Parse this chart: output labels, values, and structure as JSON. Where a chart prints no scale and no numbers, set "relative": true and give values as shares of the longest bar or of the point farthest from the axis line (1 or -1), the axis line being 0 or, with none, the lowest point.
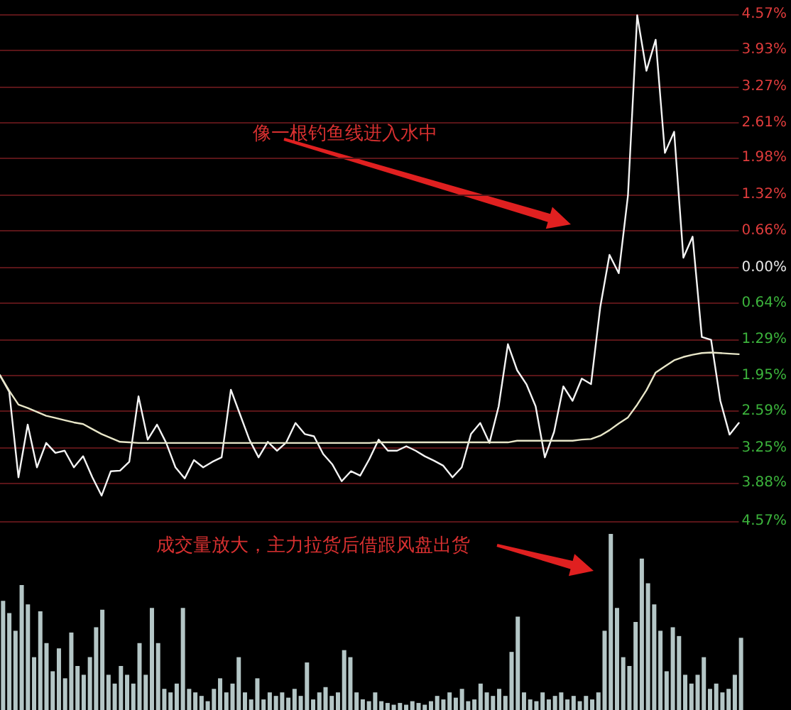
{
  "chart_data": [
    {
      "type": "line",
      "ylim": [
        -4.57,
        4.57
      ],
      "categories": [
        null,
        null,
        null,
        null,
        null,
        null,
        null,
        null,
        null,
        null,
        null,
        null,
        null,
        null,
        null,
        null,
        null,
        null,
        null,
        null,
        null,
        null,
        null,
        null,
        null,
        null,
        null,
        null,
        null,
        null,
        null,
        null,
        null,
        null,
        null,
        null,
        null,
        null,
        null,
        null,
        null,
        null,
        null,
        null,
        null,
        null,
        null,
        null,
        null,
        null,
        null,
        null,
        null,
        null,
        null,
        null,
        null,
        null,
        null,
        null,
        null,
        null,
        null,
        null,
        null,
        null,
        null,
        null,
        null,
        null,
        null,
        null,
        null,
        null,
        null,
        null,
        null,
        null,
        null,
        null,
        null
      ],
      "yticks": [
        {
          "value": 4.57,
          "label": "4.57%"
        },
        {
          "value": 3.93,
          "label": "3.93%"
        },
        {
          "value": 3.27,
          "label": "3.27%"
        },
        {
          "value": 2.61,
          "label": "2.61%"
        },
        {
          "value": 1.98,
          "label": "1.98%"
        },
        {
          "value": 1.32,
          "label": "1.32%"
        },
        {
          "value": 0.66,
          "label": "0.66%"
        },
        {
          "value": 0,
          "label": "0.00%"
        },
        {
          "value": -0.64,
          "label": "0.64%"
        },
        {
          "value": -1.29,
          "label": "1.29%"
        },
        {
          "value": -1.95,
          "label": "1.95%"
        },
        {
          "value": -2.59,
          "label": "2.59%"
        },
        {
          "value": -3.25,
          "label": "3.25%"
        },
        {
          "value": -3.88,
          "label": "3.88%"
        },
        {
          "value": -4.57,
          "label": "4.57%"
        }
      ],
      "tick_labels": "y",
      "grid": "y",
      "line_style": "solid",
      "series": [
        {
          "color": "#f4f4f4",
          "values": [
            -1.94,
            -2.24,
            -3.78,
            -2.83,
            -3.6,
            -3.16,
            -3.34,
            -3.3,
            -3.6,
            -3.4,
            -3.78,
            -4.11,
            -3.67,
            -3.66,
            -3.5,
            -2.32,
            -3.1,
            -2.83,
            -3.16,
            -3.6,
            -3.8,
            -3.47,
            -3.6,
            -3.5,
            -3.42,
            -2.2,
            -2.65,
            -3.1,
            -3.42,
            -3.14,
            -3.3,
            -3.15,
            -2.8,
            -3.0,
            -3.04,
            -3.36,
            -3.55,
            -3.85,
            -3.67,
            -3.75,
            -3.45,
            -3.1,
            -3.3,
            -3.3,
            -3.22,
            -3.3,
            -3.4,
            -3.48,
            -3.57,
            -3.78,
            -3.6,
            -3.0,
            -2.8,
            -3.16,
            -2.5,
            -1.38,
            -1.85,
            -2.1,
            -2.5,
            -3.42,
            -2.96,
            -2.14,
            -2.4,
            -2.0,
            -2.1,
            -0.71,
            0.23,
            -0.1,
            1.3,
            4.55,
            3.55,
            4.11,
            2.07,
            2.45,
            0.18,
            0.56,
            -1.25,
            -1.3,
            -2.4,
            -3.01,
            -2.8
          ]
        },
        {
          "color": "#e8e6c8",
          "values": [
            -1.94,
            -2.22,
            -2.47,
            -2.53,
            -2.6,
            -2.67,
            -2.71,
            -2.75,
            -2.79,
            -2.82,
            -2.91,
            -3.0,
            -3.07,
            -3.14,
            -3.15,
            -3.16,
            -3.16,
            -3.16,
            -3.16,
            -3.16,
            -3.16,
            -3.16,
            -3.16,
            -3.16,
            -3.16,
            -3.16,
            -3.16,
            -3.16,
            -3.16,
            -3.16,
            -3.16,
            -3.16,
            -3.16,
            -3.16,
            -3.16,
            -3.16,
            -3.16,
            -3.16,
            -3.16,
            -3.16,
            -3.16,
            -3.15,
            -3.15,
            -3.15,
            -3.15,
            -3.15,
            -3.15,
            -3.15,
            -3.15,
            -3.15,
            -3.15,
            -3.15,
            -3.15,
            -3.15,
            -3.15,
            -3.15,
            -3.12,
            -3.12,
            -3.12,
            -3.12,
            -3.12,
            -3.12,
            -3.12,
            -3.1,
            -3.09,
            -3.03,
            -2.93,
            -2.81,
            -2.7,
            -2.47,
            -2.21,
            -1.89,
            -1.78,
            -1.67,
            -1.61,
            -1.57,
            -1.54,
            -1.53,
            -1.54,
            -1.55,
            -1.56
          ]
        }
      ],
      "annotations": [
        "像一根钓鱼线进入水中"
      ]
    },
    {
      "type": "bar",
      "relative": true,
      "tick_labels": false,
      "color": "#b4c6c6",
      "categories": [
        null,
        null,
        null,
        null,
        null,
        null,
        null,
        null,
        null,
        null,
        null,
        null,
        null,
        null,
        null,
        null,
        null,
        null,
        null,
        null,
        null,
        null,
        null,
        null,
        null,
        null,
        null,
        null,
        null,
        null,
        null,
        null,
        null,
        null,
        null,
        null,
        null,
        null,
        null,
        null,
        null,
        null,
        null,
        null,
        null,
        null,
        null,
        null,
        null,
        null,
        null,
        null,
        null,
        null,
        null,
        null,
        null,
        null,
        null,
        null,
        null,
        null,
        null,
        null,
        null,
        null,
        null,
        null,
        null,
        null,
        null,
        null,
        null,
        null,
        null,
        null,
        null,
        null,
        null,
        null,
        null,
        null,
        null,
        null,
        null,
        null,
        null,
        null,
        null,
        null,
        null,
        null,
        null,
        null,
        null,
        null,
        null,
        null,
        null,
        null,
        null,
        null,
        null,
        null,
        null,
        null,
        null,
        null,
        null,
        null,
        null,
        null,
        null,
        null,
        null,
        null,
        null,
        null,
        null,
        null
      ],
      "values": [
        0.62,
        0.55,
        0.45,
        0.71,
        0.6,
        0.3,
        0.56,
        0.38,
        0.22,
        0.35,
        0.18,
        0.44,
        0.25,
        0.2,
        0.3,
        0.47,
        0.57,
        0.2,
        0.15,
        0.25,
        0.2,
        0.15,
        0.38,
        0.2,
        0.58,
        0.38,
        0.12,
        0.1,
        0.15,
        0.58,
        0.12,
        0.1,
        0.08,
        0.05,
        0.12,
        0.18,
        0.1,
        0.15,
        0.3,
        0.1,
        0.06,
        0.18,
        0.06,
        0.1,
        0.08,
        0.1,
        0.07,
        0.12,
        0.08,
        0.27,
        0.06,
        0.1,
        0.13,
        0.08,
        0.1,
        0.34,
        0.3,
        0.1,
        0.06,
        0.05,
        0.1,
        0.05,
        0.04,
        0.03,
        0.04,
        0.03,
        0.05,
        0.04,
        0.03,
        0.05,
        0.08,
        0.06,
        0.1,
        0.07,
        0.12,
        0.05,
        0.06,
        0.15,
        0.1,
        0.08,
        0.12,
        0.08,
        0.33,
        0.53,
        0.1,
        0.06,
        0.05,
        0.1,
        0.06,
        0.08,
        0.1,
        0.06,
        0.08,
        0.05,
        0.08,
        0.06,
        0.1,
        0.45,
        1,
        0.58,
        0.3,
        0.25,
        0.5,
        0.86,
        0.72,
        0.6,
        0.45,
        0.22,
        0.47,
        0.42,
        0.2,
        0.15,
        0.2,
        0.3,
        0.12,
        0.15,
        0.1,
        0.12,
        0.2,
        0.41
      ],
      "annotations": [
        "成交量放大，主力拉货后借跟风盘出货"
      ]
    }
  ]
}
